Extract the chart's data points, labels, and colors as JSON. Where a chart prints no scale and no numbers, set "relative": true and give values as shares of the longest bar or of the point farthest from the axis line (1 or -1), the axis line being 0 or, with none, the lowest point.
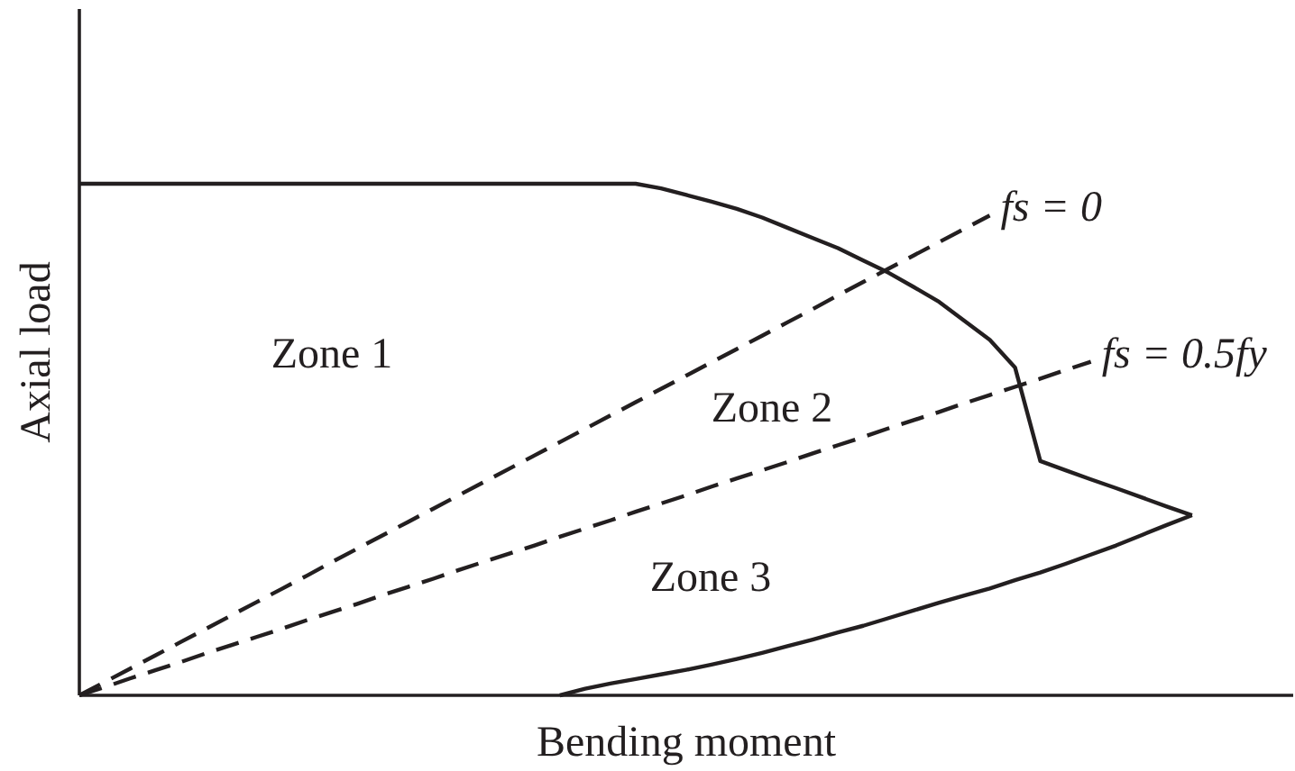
{
  "chart_data": {
    "type": "line",
    "relative": true,
    "xlabel": "Bending moment",
    "ylabel": "Axial load",
    "categories": [
      null,
      null,
      null,
      null,
      null,
      null,
      null,
      null,
      null,
      null,
      null,
      null,
      null,
      null,
      null,
      null,
      null,
      null,
      null,
      null,
      null,
      null,
      null,
      null,
      null,
      null,
      null,
      null,
      null,
      null,
      null,
      null,
      null,
      null,
      null,
      null,
      null,
      null,
      null,
      null,
      null,
      null,
      null,
      null,
      null,
      null,
      null,
      null,
      null
    ],
    "series": [
      {
        "color": "#231f20",
        "line_style": "solid",
        "values": [
          1.0,
          1.0,
          1.0,
          1.0,
          1.0,
          1.0,
          1.0,
          1.0,
          1.0,
          1.0,
          1.0,
          1.0,
          1.0,
          1.0,
          1.0,
          1.0,
          1.0,
          1.0,
          1.0,
          1.0,
          1.0,
          1.0,
          1.0,
          0.991,
          0.978,
          0.965,
          0.951,
          0.934,
          0.914,
          0.894,
          0.874,
          0.85,
          0.826,
          0.798,
          0.769,
          0.732,
          0.695,
          0.641,
          0.458,
          0.44,
          0.422,
          0.405,
          0.387,
          0.369,
          0.352,
          null,
          null,
          null,
          null
        ]
      },
      {
        "color": "#231f20",
        "line_style": "solid",
        "values": [
          null,
          null,
          null,
          null,
          null,
          null,
          null,
          null,
          null,
          null,
          null,
          null,
          null,
          null,
          null,
          null,
          null,
          null,
          null,
          0,
          0.013,
          0.023,
          0.032,
          0.041,
          0.05,
          0.06,
          0.071,
          0.083,
          0.096,
          0.109,
          0.123,
          0.136,
          0.151,
          0.166,
          0.181,
          0.195,
          0.209,
          0.225,
          0.24,
          0.257,
          0.275,
          0.293,
          0.313,
          0.333,
          0.352,
          null,
          null,
          null,
          null
        ]
      },
      {
        "name": "fs = 0",
        "color": "#231f20",
        "line_style": "dashed",
        "values": [
          0,
          0.026,
          0.052,
          0.078,
          0.104,
          0.13,
          0.156,
          0.182,
          0.208,
          0.234,
          0.261,
          0.287,
          0.313,
          0.339,
          0.365,
          0.391,
          0.417,
          0.443,
          0.469,
          0.495,
          0.521,
          0.547,
          0.573,
          0.599,
          0.625,
          0.651,
          0.677,
          0.703,
          0.729,
          0.755,
          0.782,
          0.808,
          0.834,
          0.86,
          0.886,
          0.912,
          0.938,
          null,
          null,
          null,
          null,
          null,
          null,
          null,
          null,
          null,
          null,
          null,
          null
        ]
      },
      {
        "name": "fs = 0.5fy",
        "color": "#231f20",
        "line_style": "dashed",
        "values": [
          0,
          0.016,
          0.033,
          0.049,
          0.065,
          0.082,
          0.098,
          0.114,
          0.13,
          0.147,
          0.163,
          0.179,
          0.196,
          0.212,
          0.228,
          0.245,
          0.261,
          0.277,
          0.293,
          0.31,
          0.326,
          0.342,
          0.359,
          0.375,
          0.391,
          0.408,
          0.424,
          0.44,
          0.456,
          0.473,
          0.489,
          0.505,
          0.522,
          0.538,
          0.554,
          0.571,
          0.587,
          0.603,
          0.619,
          0.636,
          0.652,
          null,
          null,
          null,
          null,
          null,
          null,
          null,
          null
        ]
      }
    ],
    "annotations": [
      "Zone 1",
      "Zone 2",
      "Zone 3"
    ]
  }
}
